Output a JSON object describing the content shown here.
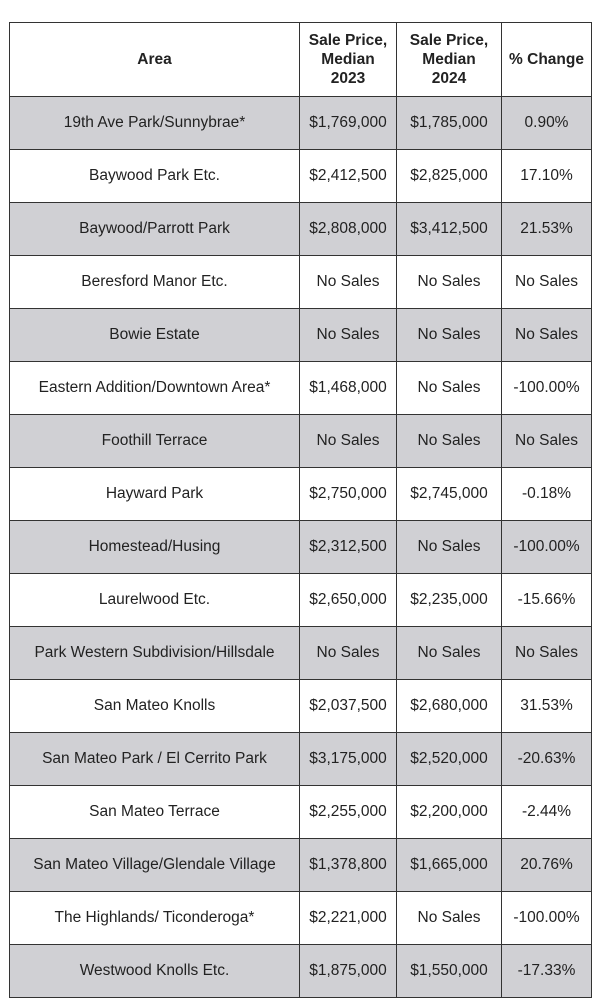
{
  "table": {
    "header": [
      [
        "Area"
      ],
      [
        "Sale Price,",
        "Median",
        "2023"
      ],
      [
        "Sale Price,",
        "Median",
        "2024"
      ],
      [
        "% Change"
      ]
    ],
    "rows": [
      [
        "19th Ave Park/Sunnybrae*",
        "$1,769,000",
        "$1,785,000",
        "0.90%"
      ],
      [
        "Baywood Park Etc.",
        "$2,412,500",
        "$2,825,000",
        "17.10%"
      ],
      [
        "Baywood/Parrott Park",
        "$2,808,000",
        "$3,412,500",
        "21.53%"
      ],
      [
        "Beresford Manor Etc.",
        "No Sales",
        "No Sales",
        "No Sales"
      ],
      [
        "Bowie Estate",
        "No Sales",
        "No Sales",
        "No Sales"
      ],
      [
        "Eastern Addition/Downtown Area*",
        "$1,468,000",
        "No Sales",
        "-100.00%"
      ],
      [
        "Foothill Terrace",
        "No Sales",
        "No Sales",
        "No Sales"
      ],
      [
        "Hayward Park",
        "$2,750,000",
        "$2,745,000",
        "-0.18%"
      ],
      [
        "Homestead/Husing",
        "$2,312,500",
        "No Sales",
        "-100.00%"
      ],
      [
        "Laurelwood Etc.",
        "$2,650,000",
        "$2,235,000",
        "-15.66%"
      ],
      [
        "Park Western Subdivision/Hillsdale",
        "No Sales",
        "No Sales",
        "No Sales"
      ],
      [
        "San Mateo Knolls",
        "$2,037,500",
        "$2,680,000",
        "31.53%"
      ],
      [
        "San Mateo Park / El Cerrito Park",
        "$3,175,000",
        "$2,520,000",
        "-20.63%"
      ],
      [
        "San Mateo Terrace",
        "$2,255,000",
        "$2,200,000",
        "-2.44%"
      ],
      [
        "San Mateo Village/Glendale Village",
        "$1,378,800",
        "$1,665,000",
        "20.76%"
      ],
      [
        "The Highlands/ Ticonderoga*",
        "$2,221,000",
        "No Sales",
        "-100.00%"
      ],
      [
        "Westwood Knolls Etc.",
        "$1,875,000",
        "$1,550,000",
        "-17.33%"
      ]
    ]
  }
}
